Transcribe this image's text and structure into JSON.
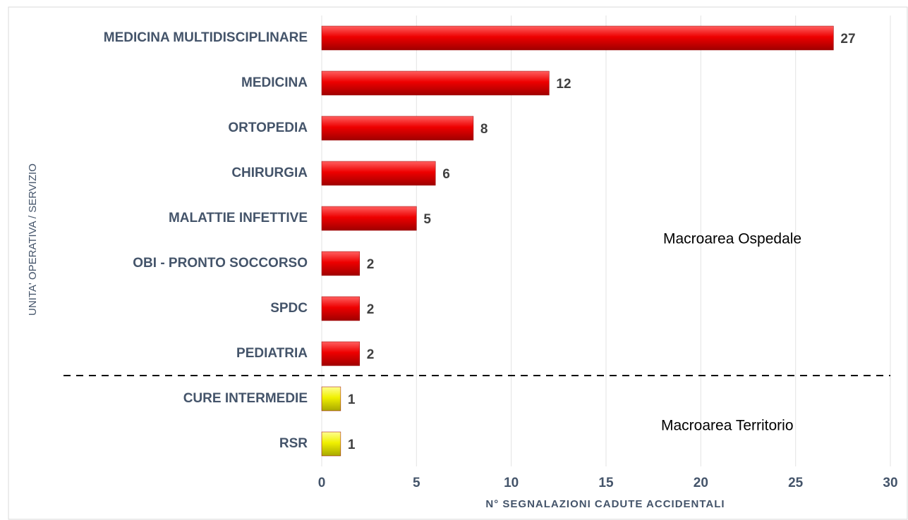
{
  "chart_data": {
    "type": "bar",
    "orientation": "horizontal",
    "x_label": "N° SEGNALAZIONI CADUTE ACCIDENTALI",
    "y_label": "UNITA' OPERATIVA / SERVIZIO",
    "categories": [
      "MEDICINA MULTIDISCIPLINARE",
      "MEDICINA",
      "ORTOPEDIA",
      "CHIRURGIA",
      "MALATTIE INFETTIVE",
      "OBI - PRONTO SOCCORSO",
      "SPDC",
      "PEDIATRIA",
      "CURE INTERMEDIE",
      "RSR"
    ],
    "values": [
      27,
      12,
      8,
      6,
      5,
      2,
      2,
      2,
      1,
      1
    ],
    "colors": [
      "#ee0000",
      "#ee0000",
      "#ee0000",
      "#ee0000",
      "#ee0000",
      "#ee0000",
      "#ee0000",
      "#ee0000",
      "#f0f000",
      "#f0f000"
    ],
    "annotations": [
      "Macroarea Ospedale",
      "Macroarea Territorio"
    ],
    "xlim": [
      0,
      30
    ],
    "xticks": [
      0,
      5,
      10,
      15,
      20,
      25,
      30
    ],
    "grid": true
  }
}
